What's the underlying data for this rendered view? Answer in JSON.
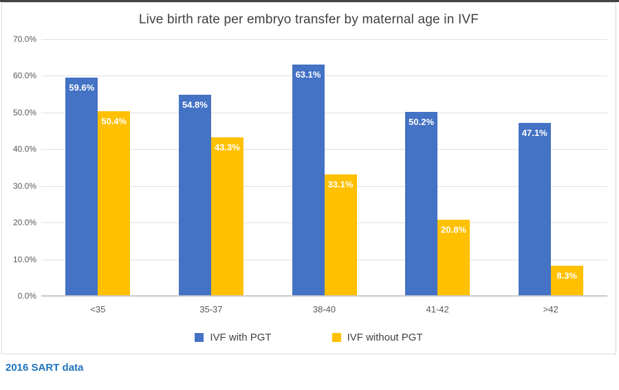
{
  "window": {
    "top_strip_color": "#424242"
  },
  "page": {
    "source_note": "2016 SART data",
    "source_color": "#1E73BE"
  },
  "chart_data": {
    "type": "bar",
    "title": "Live birth rate per embryo transfer by maternal age in IVF",
    "categories": [
      "<35",
      "35-37",
      "38-40",
      "41-42",
      ">42"
    ],
    "series": [
      {
        "name": "IVF with PGT",
        "color": "#4472C4",
        "values": [
          59.6,
          54.8,
          63.1,
          50.2,
          47.1
        ]
      },
      {
        "name": "IVF without PGT",
        "color": "#FFC000",
        "values": [
          50.4,
          43.3,
          33.1,
          20.8,
          8.3
        ]
      }
    ],
    "data_labels": [
      [
        "59.6%",
        "54.8%",
        "63.1%",
        "50.2%",
        "47.1%"
      ],
      [
        "50.4%",
        "43.3%",
        "33.1%",
        "20.8%",
        "8.3%"
      ]
    ],
    "ylim": [
      0,
      70
    ],
    "ytick_step": 10,
    "ytick_labels": [
      "0.0%",
      "10.0%",
      "20.0%",
      "30.0%",
      "40.0%",
      "50.0%",
      "60.0%",
      "70.0%"
    ],
    "grid": true,
    "legend_position": "bottom",
    "colors": {
      "grid": "#E0E0E0",
      "axis": "#C8C8C8",
      "tick_text": "#595959",
      "title_text": "#3F3F3F",
      "legend_text": "#404040",
      "data_label_text": "#FFFFFF"
    }
  }
}
